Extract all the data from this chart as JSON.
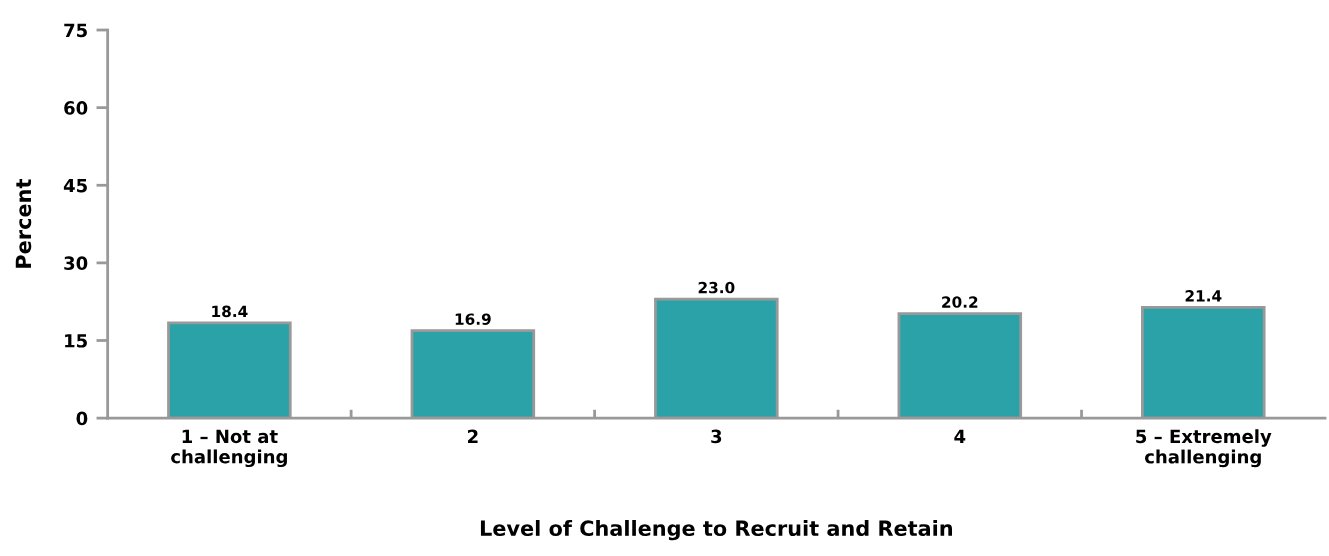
{
  "chart_data": {
    "type": "bar",
    "categories": [
      "1 – Not at\nchallenging",
      "2",
      "3",
      "4",
      "5 – Extremely\nchallenging"
    ],
    "values": [
      18.4,
      16.9,
      23.0,
      20.2,
      21.4
    ],
    "value_labels": [
      "18.4",
      "16.9",
      "23.0",
      "20.2",
      "21.4"
    ],
    "color": "#2aa2a7",
    "xlabel": "Level of Challenge to Recruit and Retain",
    "ylabel": "Percent",
    "ylim": [
      0,
      75
    ],
    "yticks": [
      0,
      15,
      30,
      45,
      60,
      75
    ],
    "grid": false
  }
}
